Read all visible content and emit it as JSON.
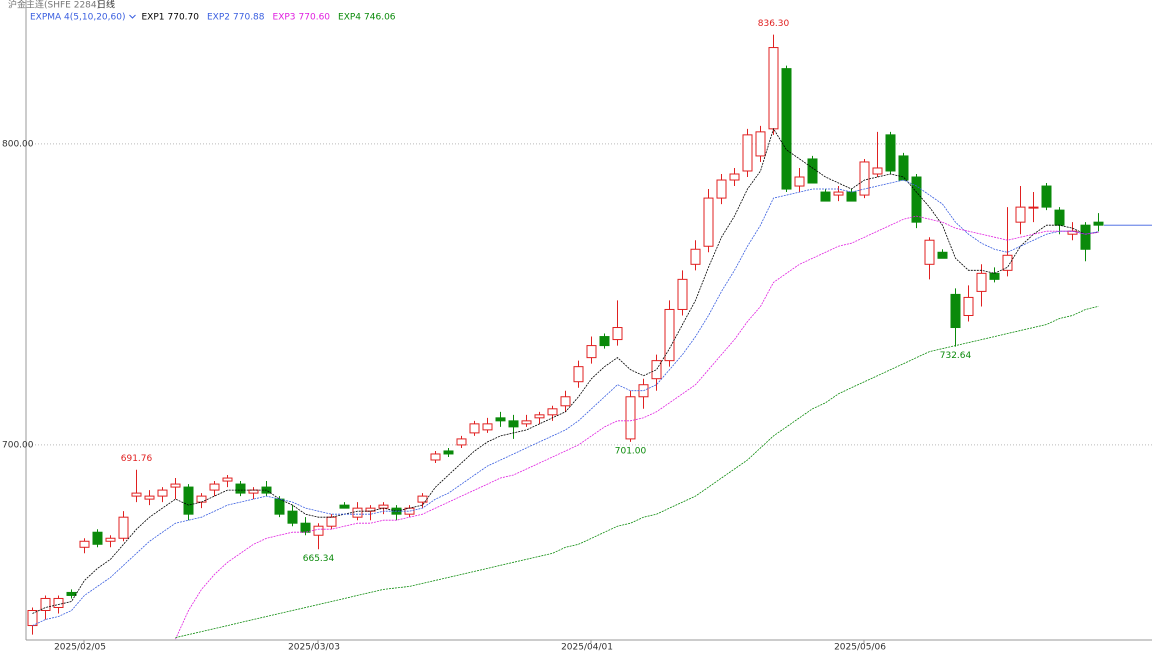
{
  "chart_data": {
    "type": "candlestick",
    "symbol": "沪金主连(SHFE 2284)",
    "period": "日线",
    "indicator": "EXPMA 4(5,10,20,60)",
    "ylim": [
      635.2,
      847.8
    ],
    "yticks": [
      {
        "value": 800,
        "label": "800.00"
      },
      {
        "value": 700,
        "label": "700.00"
      }
    ],
    "grid": true,
    "up_color": "#e02020",
    "down_color": "#0a8a0a",
    "categories": [
      null,
      null,
      null,
      null,
      "2025/02/05",
      null,
      null,
      null,
      null,
      null,
      null,
      null,
      null,
      null,
      null,
      null,
      null,
      null,
      null,
      null,
      null,
      null,
      "2025/03/03",
      null,
      null,
      null,
      null,
      null,
      null,
      null,
      null,
      null,
      null,
      null,
      null,
      null,
      null,
      null,
      null,
      null,
      null,
      null,
      null,
      "2025/04/01",
      null,
      null,
      null,
      null,
      null,
      null,
      null,
      null,
      null,
      null,
      null,
      null,
      null,
      null,
      null,
      null,
      null,
      null,
      null,
      null,
      "2025/05/06",
      null,
      null,
      null,
      null,
      null,
      null,
      null,
      null,
      null,
      null,
      null,
      null,
      null,
      null,
      null,
      null,
      null,
      null
    ],
    "ohlc": [
      [
        640,
        646,
        637,
        645
      ],
      [
        645,
        650,
        642,
        649
      ],
      [
        646,
        650,
        644,
        649
      ],
      [
        651,
        652,
        649,
        650
      ],
      [
        666,
        669,
        664,
        668
      ],
      [
        671,
        672,
        666,
        667
      ],
      [
        668,
        670,
        666,
        669
      ],
      [
        669,
        678,
        668,
        676
      ],
      [
        683,
        691.76,
        681,
        684
      ],
      [
        682,
        685,
        680,
        683
      ],
      [
        683,
        686,
        681,
        685
      ],
      [
        686,
        689,
        682,
        687
      ],
      [
        686,
        687,
        675,
        677
      ],
      [
        681,
        684,
        679,
        683
      ],
      [
        685,
        688,
        683,
        687
      ],
      [
        688,
        690,
        686,
        689
      ],
      [
        687,
        688,
        683,
        684
      ],
      [
        684,
        686,
        682,
        685
      ],
      [
        686,
        688,
        683,
        684
      ],
      [
        682,
        683,
        676,
        677
      ],
      [
        678,
        680,
        673,
        674
      ],
      [
        674,
        676,
        670,
        671
      ],
      [
        670,
        674,
        665.34,
        673
      ],
      [
        673,
        677,
        672,
        676
      ],
      [
        680,
        681,
        679,
        679
      ],
      [
        676,
        681,
        675,
        679
      ],
      [
        678,
        680,
        675,
        679
      ],
      [
        679,
        681,
        677,
        680
      ],
      [
        679,
        680,
        675,
        677
      ],
      [
        677,
        680,
        676,
        679
      ],
      [
        681,
        684,
        679,
        683
      ],
      [
        695,
        698,
        694,
        697
      ],
      [
        698,
        699,
        696,
        697
      ],
      [
        700,
        703,
        699,
        702
      ],
      [
        704,
        708,
        703,
        707
      ],
      [
        705,
        709,
        704,
        707
      ],
      [
        709,
        711,
        706,
        708
      ],
      [
        708,
        710,
        702,
        706
      ],
      [
        707,
        710,
        706,
        708
      ],
      [
        709,
        711,
        707,
        710
      ],
      [
        710,
        713,
        708,
        712
      ],
      [
        713,
        718,
        711,
        716
      ],
      [
        721,
        728,
        719,
        726
      ],
      [
        729,
        736,
        727,
        733
      ],
      [
        736,
        737,
        732,
        733
      ],
      [
        735,
        748,
        733,
        739
      ],
      [
        702,
        718,
        701,
        716
      ],
      [
        716,
        722,
        712,
        720
      ],
      [
        722,
        730,
        718,
        728
      ],
      [
        728,
        748,
        726,
        745
      ],
      [
        745,
        758,
        743,
        755
      ],
      [
        760,
        768,
        758,
        765
      ],
      [
        766,
        785,
        764,
        782
      ],
      [
        782,
        790,
        780,
        788
      ],
      [
        788,
        792,
        786,
        790
      ],
      [
        791,
        805,
        789,
        803
      ],
      [
        796,
        806,
        794,
        804
      ],
      [
        805,
        836.3,
        803,
        832
      ],
      [
        825,
        826,
        784,
        785
      ],
      [
        786,
        792,
        784,
        789
      ],
      [
        795,
        796,
        787,
        787
      ],
      [
        784,
        785,
        781,
        781
      ],
      [
        783,
        786,
        781,
        784
      ],
      [
        784,
        785,
        781,
        781
      ],
      [
        783,
        795,
        782,
        794
      ],
      [
        790,
        804,
        789,
        792
      ],
      [
        803,
        804,
        790,
        791
      ],
      [
        796,
        797,
        788,
        788
      ],
      [
        789,
        790,
        772,
        774
      ],
      [
        760,
        769,
        755,
        768
      ],
      [
        764,
        765,
        762,
        762
      ],
      [
        750,
        752,
        732.64,
        739
      ],
      [
        743,
        753,
        741,
        749
      ],
      [
        751,
        760,
        746,
        757
      ],
      [
        757,
        759,
        754,
        755
      ],
      [
        758,
        779,
        756,
        763
      ],
      [
        774,
        786,
        770,
        779
      ],
      [
        779,
        784,
        774,
        779
      ],
      [
        786,
        787,
        778,
        779
      ],
      [
        778,
        779,
        770,
        773
      ],
      [
        770,
        774,
        768,
        771
      ],
      [
        773,
        774,
        761,
        765
      ],
      [
        774,
        777,
        771,
        773
      ]
    ],
    "high_labels": [
      null,
      null,
      null,
      null,
      null,
      null,
      null,
      null,
      "691.76",
      null,
      null,
      null,
      null,
      null,
      null,
      null,
      null,
      null,
      null,
      null,
      null,
      null,
      null,
      null,
      null,
      null,
      null,
      null,
      null,
      null,
      null,
      null,
      null,
      null,
      null,
      null,
      null,
      null,
      null,
      null,
      null,
      null,
      null,
      null,
      null,
      null,
      null,
      null,
      null,
      null,
      null,
      null,
      null,
      null,
      null,
      null,
      null,
      "836.30",
      null,
      null,
      null,
      null,
      null,
      null,
      null,
      null,
      null,
      null,
      null,
      null,
      null,
      null,
      null,
      null,
      null,
      null,
      null,
      null,
      null,
      null,
      null,
      null,
      null
    ],
    "low_labels": [
      null,
      null,
      null,
      null,
      null,
      null,
      null,
      null,
      null,
      null,
      null,
      null,
      null,
      null,
      null,
      null,
      null,
      null,
      null,
      null,
      null,
      null,
      "665.34",
      null,
      null,
      null,
      null,
      null,
      null,
      null,
      null,
      null,
      null,
      null,
      null,
      null,
      null,
      null,
      null,
      null,
      null,
      null,
      null,
      null,
      null,
      null,
      "701.00",
      null,
      null,
      null,
      null,
      null,
      null,
      null,
      null,
      null,
      null,
      null,
      null,
      null,
      null,
      null,
      null,
      null,
      null,
      null,
      null,
      null,
      null,
      null,
      null,
      "732.64",
      null,
      null,
      null,
      null,
      null,
      null,
      null,
      null,
      null,
      null,
      null
    ],
    "series": [
      {
        "name": "EXP1",
        "last_label": "770.70",
        "color": "#000000",
        "values": [
          644,
          646,
          647,
          648,
          655,
          659,
          662,
          667,
          672,
          676,
          679,
          682,
          680,
          681,
          683,
          685,
          685,
          685,
          685,
          682,
          680,
          677,
          676,
          676,
          677,
          678,
          678,
          679,
          678,
          679,
          680,
          686,
          690,
          694,
          698,
          701,
          703,
          704,
          705,
          707,
          709,
          711,
          716,
          722,
          726,
          729,
          725,
          723,
          725,
          732,
          740,
          748,
          759,
          769,
          776,
          785,
          791,
          805,
          798,
          795,
          792,
          789,
          787,
          785,
          788,
          789,
          790,
          789,
          784,
          779,
          773,
          762,
          758,
          758,
          757,
          759,
          766,
          770,
          773,
          773,
          772,
          770,
          770.7
        ]
      },
      {
        "name": "EXP2",
        "last_label": "770.88",
        "color": "#3a5fe0",
        "values": [
          640,
          642,
          643,
          645,
          650,
          653,
          656,
          660,
          664,
          668,
          671,
          674,
          675,
          676,
          678,
          680,
          681,
          682,
          683,
          682,
          681,
          679,
          678,
          677,
          677,
          677,
          677,
          678,
          678,
          678,
          679,
          682,
          684,
          687,
          690,
          693,
          695,
          697,
          699,
          701,
          703,
          705,
          708,
          712,
          716,
          720,
          718,
          718,
          720,
          725,
          730,
          736,
          743,
          751,
          758,
          766,
          773,
          782,
          783,
          784,
          785,
          785,
          785,
          784,
          785,
          786,
          787,
          788,
          786,
          783,
          780,
          774,
          770,
          767,
          765,
          764,
          766,
          768,
          770,
          771,
          771,
          770,
          770.88
        ]
      },
      {
        "name": "EXP3",
        "last_label": "770.60",
        "color": "#e020e0",
        "values": [
          null,
          null,
          null,
          null,
          null,
          null,
          null,
          null,
          null,
          null,
          null,
          635.5,
          645,
          652,
          657,
          661,
          664,
          667,
          669,
          670,
          671,
          671,
          672,
          672,
          673,
          674,
          674,
          675,
          675,
          676,
          677,
          679,
          681,
          683,
          685,
          687,
          689,
          690,
          692,
          694,
          696,
          698,
          700,
          703,
          706,
          708,
          708,
          709,
          711,
          714,
          717,
          720,
          725,
          730,
          735,
          741,
          746,
          754,
          757,
          760,
          762,
          764,
          766,
          767,
          769,
          771,
          773,
          775,
          776,
          775,
          774,
          772,
          771,
          770,
          769,
          768,
          769,
          770,
          771,
          771,
          771,
          770,
          770.6
        ]
      },
      {
        "name": "EXP4",
        "last_label": "746.06",
        "color": "#0a8a0a",
        "values": [
          null,
          null,
          null,
          null,
          null,
          null,
          null,
          null,
          null,
          null,
          null,
          636,
          637,
          638,
          639,
          640,
          641,
          642,
          643,
          644,
          645,
          646,
          647,
          648,
          649,
          650,
          651,
          652,
          652.5,
          653,
          654,
          655,
          656,
          657,
          658,
          659,
          660,
          661,
          662,
          663,
          664,
          666,
          667,
          669,
          671,
          673,
          674,
          676,
          677,
          679,
          681,
          683,
          686,
          689,
          692,
          695,
          699,
          703,
          706,
          709,
          712,
          714,
          717,
          719,
          721,
          723,
          725,
          727,
          729,
          731,
          732,
          733,
          734,
          735,
          736,
          737,
          738,
          739,
          740,
          742,
          743,
          745,
          746.06
        ]
      }
    ]
  }
}
